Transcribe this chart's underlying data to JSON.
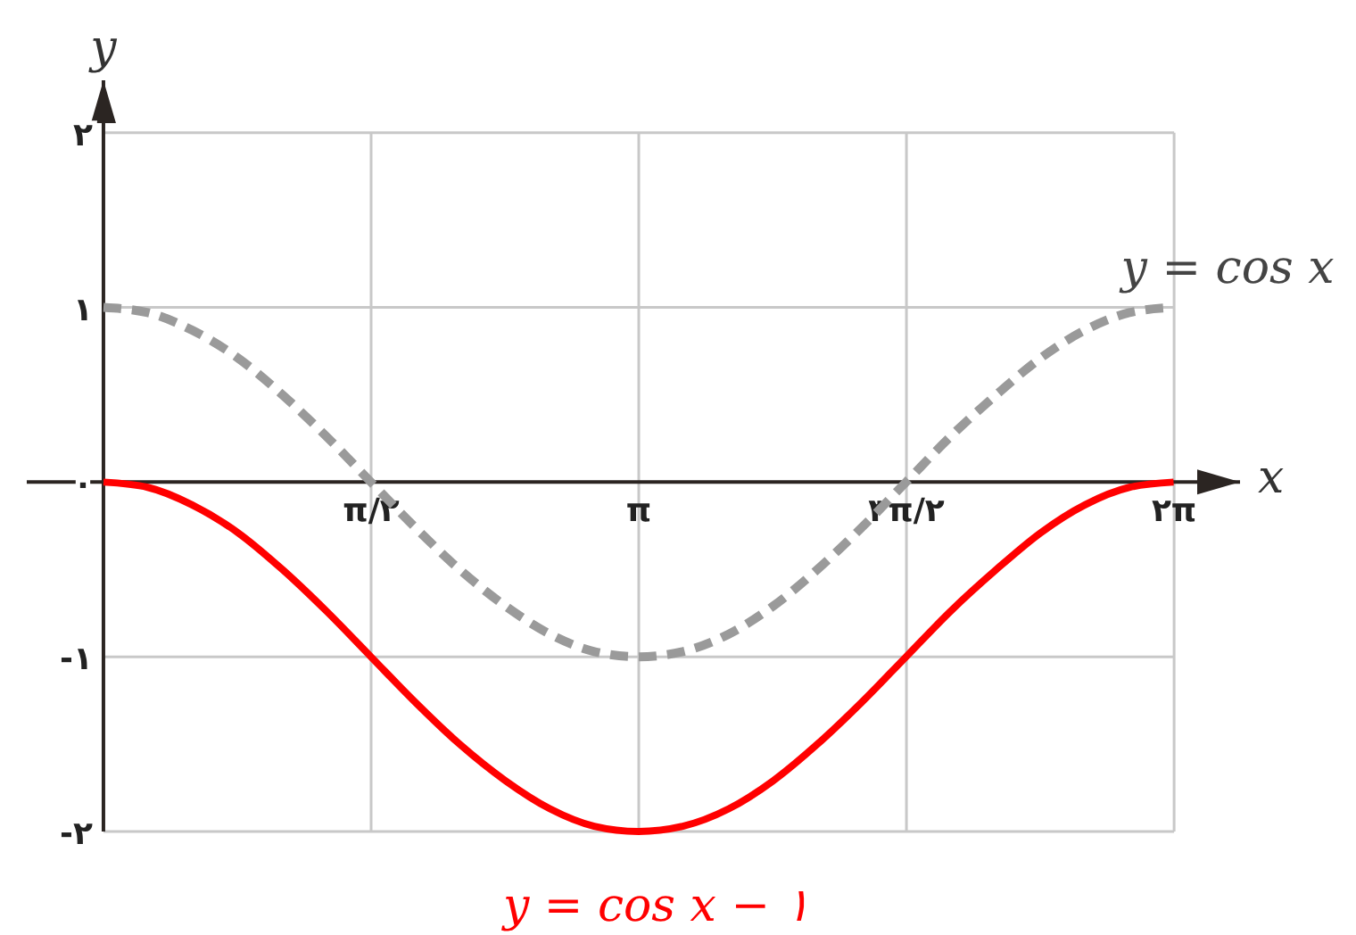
{
  "chart_data": {
    "type": "line",
    "xlabel": "x",
    "ylabel": "y",
    "x": [
      0,
      0.26,
      0.52,
      0.79,
      1.05,
      1.31,
      1.57,
      1.83,
      2.09,
      2.36,
      2.62,
      2.88,
      3.14,
      3.4,
      3.67,
      3.93,
      4.19,
      4.45,
      4.71,
      4.97,
      5.24,
      5.5,
      5.76,
      6.02,
      6.28
    ],
    "series": [
      {
        "name": "y = cos x",
        "color": "#9a9a9a",
        "line_style": "dashed",
        "values": [
          1,
          0.97,
          0.87,
          0.71,
          0.5,
          0.26,
          0,
          -0.26,
          -0.5,
          -0.71,
          -0.87,
          -0.97,
          -1,
          -0.97,
          -0.87,
          -0.71,
          -0.5,
          -0.26,
          0,
          0.26,
          0.5,
          0.71,
          0.87,
          0.97,
          1
        ]
      },
      {
        "name": "y = cos x − ۱",
        "color": "#ff0000",
        "line_style": "solid",
        "values": [
          0,
          -0.03,
          -0.13,
          -0.29,
          -0.5,
          -0.74,
          -1,
          -1.26,
          -1.5,
          -1.71,
          -1.87,
          -1.97,
          -2,
          -1.97,
          -1.87,
          -1.71,
          -1.5,
          -1.26,
          -1,
          -0.74,
          -0.5,
          -0.29,
          -0.13,
          -0.03,
          0
        ]
      }
    ],
    "xlim": [
      -0.45,
      6.67
    ],
    "ylim": [
      -2,
      2.3
    ],
    "xticks": [
      {
        "value": 1.5708,
        "label": "π/۲"
      },
      {
        "value": 3.1416,
        "label": "π"
      },
      {
        "value": 4.7124,
        "label": "۳π/۲"
      },
      {
        "value": 6.2832,
        "label": "۲π"
      }
    ],
    "yticks": [
      {
        "value": -2,
        "label": "-۲"
      },
      {
        "value": -1,
        "label": "-۱"
      },
      {
        "value": 0,
        "label": "۰"
      },
      {
        "value": 1,
        "label": "۱"
      },
      {
        "value": 2,
        "label": "۲"
      }
    ],
    "grid": true
  }
}
